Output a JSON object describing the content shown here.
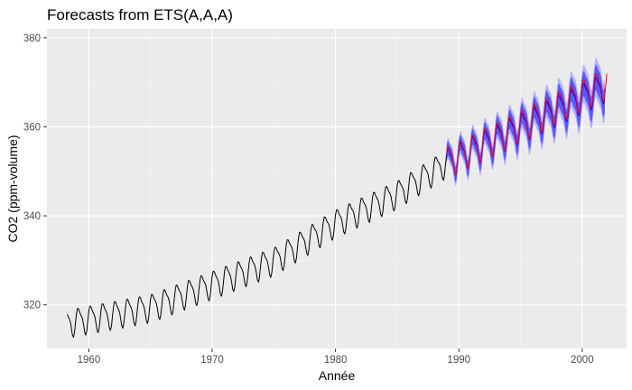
{
  "chart_data": {
    "type": "line",
    "title": "Forecasts from ETS(A,A,A)",
    "xlabel": "Année",
    "ylabel": "CO2 (ppm-volume)",
    "xlim": [
      1956.6,
      2003.6
    ],
    "ylim": [
      310.2,
      382.0
    ],
    "x_ticks": [
      1960,
      1970,
      1980,
      1990,
      2000
    ],
    "x_tick_labels": [
      "1960",
      "1970",
      "1980",
      "1990",
      "2000"
    ],
    "y_ticks": [
      320,
      340,
      360,
      380
    ],
    "y_tick_labels": [
      "320",
      "340",
      "360",
      "380"
    ],
    "grid": true,
    "legend": "none",
    "series": [
      {
        "role": "observed",
        "color": "#000000",
        "x_start": 1958.25,
        "x_end": 1989.0,
        "level_anchors": [
          [
            1958.25,
            316.0
          ],
          [
            1965.0,
            319.5
          ],
          [
            1970.0,
            324.7
          ],
          [
            1975.0,
            330.0
          ],
          [
            1980.0,
            338.5
          ],
          [
            1985.0,
            345.0
          ],
          [
            1989.0,
            352.0
          ]
        ],
        "seasonal_amplitude": 3.0
      },
      {
        "role": "forecast-mean",
        "color": "#0000ff",
        "x_start": 1989.0,
        "x_end": 2001.8,
        "level_anchors": [
          [
            1989.0,
            352.0
          ],
          [
            2001.8,
            369.0
          ]
        ],
        "seasonal_amplitude": 3.2
      },
      {
        "role": "actual-holdout",
        "color": "#ff0000",
        "x_start": 1989.0,
        "x_end": 2002.0,
        "level_anchors": [
          [
            1989.0,
            352.2
          ],
          [
            2002.0,
            370.0
          ]
        ],
        "seasonal_amplitude": 3.4
      }
    ],
    "intervals": [
      {
        "level": "80%",
        "color": "#5959ff",
        "halfwidth_start": 1.6,
        "halfwidth_end": 3.0
      },
      {
        "level": "95%",
        "color": "#b2b2ff",
        "halfwidth_start": 2.4,
        "halfwidth_end": 4.6
      }
    ]
  }
}
